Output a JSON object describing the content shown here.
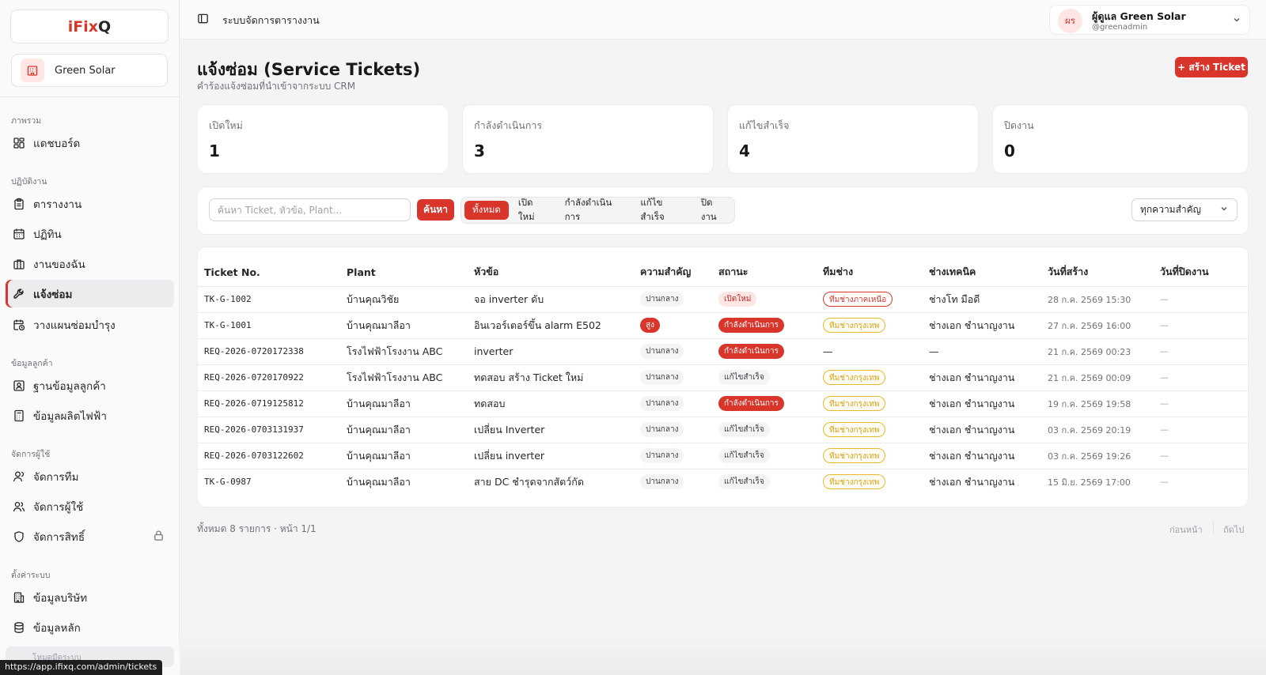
{
  "brand": {
    "logo_part1": "iFix",
    "logo_part2": "Q",
    "accent": "#d9352b"
  },
  "org": {
    "name": "Green Solar"
  },
  "sidebar": {
    "sections": [
      {
        "label": "ภาพรวม"
      },
      {
        "label": "ปฏิบัติงาน"
      },
      {
        "label": "ข้อมูลลูกค้า"
      },
      {
        "label": "จัดการผู้ใช้"
      },
      {
        "label": "ตั้งค่าระบบ"
      }
    ],
    "items": [
      {
        "label": "แดชบอร์ด",
        "icon": "dashboard-icon"
      },
      {
        "label": "ตารางงาน",
        "icon": "clipboard-icon"
      },
      {
        "label": "ปฏิทิน",
        "icon": "calendar-icon"
      },
      {
        "label": "งานของฉัน",
        "icon": "briefcase-icon"
      },
      {
        "label": "แจ้งซ่อม",
        "icon": "wrench-icon",
        "active": true
      },
      {
        "label": "วางแผนซ่อมบำรุง",
        "icon": "calendar-clock-icon"
      },
      {
        "label": "ฐานข้อมูลลูกค้า",
        "icon": "contact-icon"
      },
      {
        "label": "ข้อมูลผลิตไฟฟ้า",
        "icon": "calculator-icon"
      },
      {
        "label": "จัดการทีม",
        "icon": "user-icon"
      },
      {
        "label": "จัดการผู้ใช้",
        "icon": "users-icon"
      },
      {
        "label": "จัดการสิทธิ์",
        "icon": "shield-icon"
      },
      {
        "label": "ข้อมูลบริษัท",
        "icon": "building-icon"
      },
      {
        "label": "ข้อมูลหลัก",
        "icon": "database-icon"
      }
    ],
    "bottom_label": "โหมดมืดระบบ"
  },
  "status_bar_url": "https://app.ifixq.com/admin/tickets",
  "topbar": {
    "title": "ระบบจัดการตารางงาน"
  },
  "user": {
    "initials": "ผร",
    "name": "ผู้ดูแล Green Solar",
    "handle": "@greenadmin"
  },
  "page": {
    "title": "แจ้งซ่อม (Service Tickets)",
    "subtitle": "คำร้องแจ้งซ่อมที่นำเข้าจากระบบ CRM",
    "create_label": "+ สร้าง Ticket"
  },
  "stats": [
    {
      "label": "เปิดใหม่",
      "value": "1"
    },
    {
      "label": "กำลังดำเนินการ",
      "value": "3"
    },
    {
      "label": "แก้ไขสำเร็จ",
      "value": "4"
    },
    {
      "label": "ปิดงาน",
      "value": "0"
    }
  ],
  "filters": {
    "search_placeholder": "ค้นหา Ticket, หัวข้อ, Plant...",
    "search_button": "ค้นหา",
    "status_tabs": [
      "ทั้งหมด",
      "เปิดใหม่",
      "กำลังดำเนินการ",
      "แก้ไขสำเร็จ",
      "ปิดงาน"
    ],
    "active_tab": 0,
    "priority_selected": "ทุกความสำคัญ"
  },
  "table": {
    "columns": [
      "Ticket No.",
      "Plant",
      "หัวข้อ",
      "ความสำคัญ",
      "สถานะ",
      "ทีมช่าง",
      "ช่างเทคนิค",
      "วันที่สร้าง",
      "วันที่ปิดงาน"
    ],
    "rows": [
      {
        "ticket": "TK-G-1002",
        "plant": "บ้านคุณวิชัย",
        "subject": "จอ inverter ดับ",
        "priority": "ปานกลาง",
        "priority_level": "normal",
        "status": "เปิดใหม่",
        "status_level": "new",
        "team": "ทีมช่างภาคเหนือ",
        "team_style": "north",
        "tech": "ช่างโท มือดี",
        "created": "28 ก.ค. 2569 15:30",
        "closed": "—"
      },
      {
        "ticket": "TK-G-1001",
        "plant": "บ้านคุณมาลีอา",
        "subject": "อินเวอร์เตอร์ขึ้น alarm E502",
        "priority": "สูง",
        "priority_level": "high",
        "status": "กำลังดำเนินการ",
        "status_level": "prog",
        "team": "ทีมช่างกรุงเทพ",
        "team_style": "bkk",
        "tech": "ช่างเอก ชำนาญงาน",
        "created": "27 ก.ค. 2569 16:00",
        "closed": "—"
      },
      {
        "ticket": "REQ-2026-0720172338",
        "plant": "โรงไฟฟ้าโรงงาน ABC",
        "subject": "inverter",
        "priority": "ปานกลาง",
        "priority_level": "normal",
        "status": "กำลังดำเนินการ",
        "status_level": "prog",
        "team": "—",
        "team_style": "none",
        "tech": "—",
        "created": "21 ก.ค. 2569 00:23",
        "closed": "—"
      },
      {
        "ticket": "REQ-2026-0720170922",
        "plant": "โรงไฟฟ้าโรงงาน ABC",
        "subject": "ทดสอบ สร้าง Ticket ใหม่",
        "priority": "ปานกลาง",
        "priority_level": "normal",
        "status": "แก้ไขสำเร็จ",
        "status_level": "done",
        "team": "ทีมช่างกรุงเทพ",
        "team_style": "bkk",
        "tech": "ช่างเอก ชำนาญงาน",
        "created": "21 ก.ค. 2569 00:09",
        "closed": "—"
      },
      {
        "ticket": "REQ-2026-0719125812",
        "plant": "บ้านคุณมาลีอา",
        "subject": "ทดสอบ",
        "priority": "ปานกลาง",
        "priority_level": "normal",
        "status": "กำลังดำเนินการ",
        "status_level": "prog",
        "team": "ทีมช่างกรุงเทพ",
        "team_style": "bkk",
        "tech": "ช่างเอก ชำนาญงาน",
        "created": "19 ก.ค. 2569 19:58",
        "closed": "—"
      },
      {
        "ticket": "REQ-2026-0703131937",
        "plant": "บ้านคุณมาลีอา",
        "subject": "เปลี่ยน Inverter",
        "priority": "ปานกลาง",
        "priority_level": "normal",
        "status": "แก้ไขสำเร็จ",
        "status_level": "done",
        "team": "ทีมช่างกรุงเทพ",
        "team_style": "bkk",
        "tech": "ช่างเอก ชำนาญงาน",
        "created": "03 ก.ค. 2569 20:19",
        "closed": "—"
      },
      {
        "ticket": "REQ-2026-0703122602",
        "plant": "บ้านคุณมาลีอา",
        "subject": "เปลี่ยน inverter",
        "priority": "ปานกลาง",
        "priority_level": "normal",
        "status": "แก้ไขสำเร็จ",
        "status_level": "done",
        "team": "ทีมช่างกรุงเทพ",
        "team_style": "bkk",
        "tech": "ช่างเอก ชำนาญงาน",
        "created": "03 ก.ค. 2569 19:26",
        "closed": "—"
      },
      {
        "ticket": "TK-G-0987",
        "plant": "บ้านคุณมาลีอา",
        "subject": "สาย DC ชำรุดจากสัตว์กัด",
        "priority": "ปานกลาง",
        "priority_level": "normal",
        "status": "แก้ไขสำเร็จ",
        "status_level": "done",
        "team": "ทีมช่างกรุงเทพ",
        "team_style": "bkk",
        "tech": "ช่างเอก ชำนาญงาน",
        "created": "15 มิ.ย. 2569 17:00",
        "closed": "—"
      }
    ]
  },
  "pagination": {
    "info": "ทั้งหมด 8 รายการ · หน้า 1/1",
    "prev": "ก่อนหน้า",
    "next": "ถัดไป"
  }
}
